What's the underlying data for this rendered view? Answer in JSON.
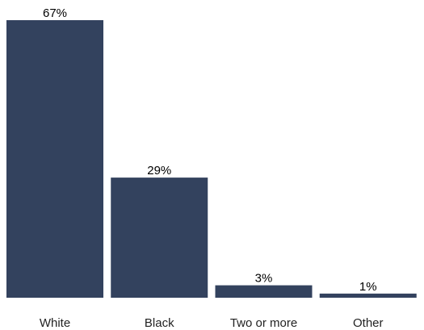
{
  "chart_data": {
    "type": "bar",
    "categories": [
      "White",
      "Black",
      "Two or more",
      "Other"
    ],
    "values": [
      67,
      29,
      3,
      1
    ],
    "value_labels": [
      "67%",
      "29%",
      "3%",
      "1%"
    ],
    "value_unit": "%",
    "title": "",
    "xlabel": "",
    "ylabel": "",
    "ylim": [
      0,
      67
    ],
    "grid": false,
    "legend": "none",
    "bar_color": "#33425e"
  }
}
